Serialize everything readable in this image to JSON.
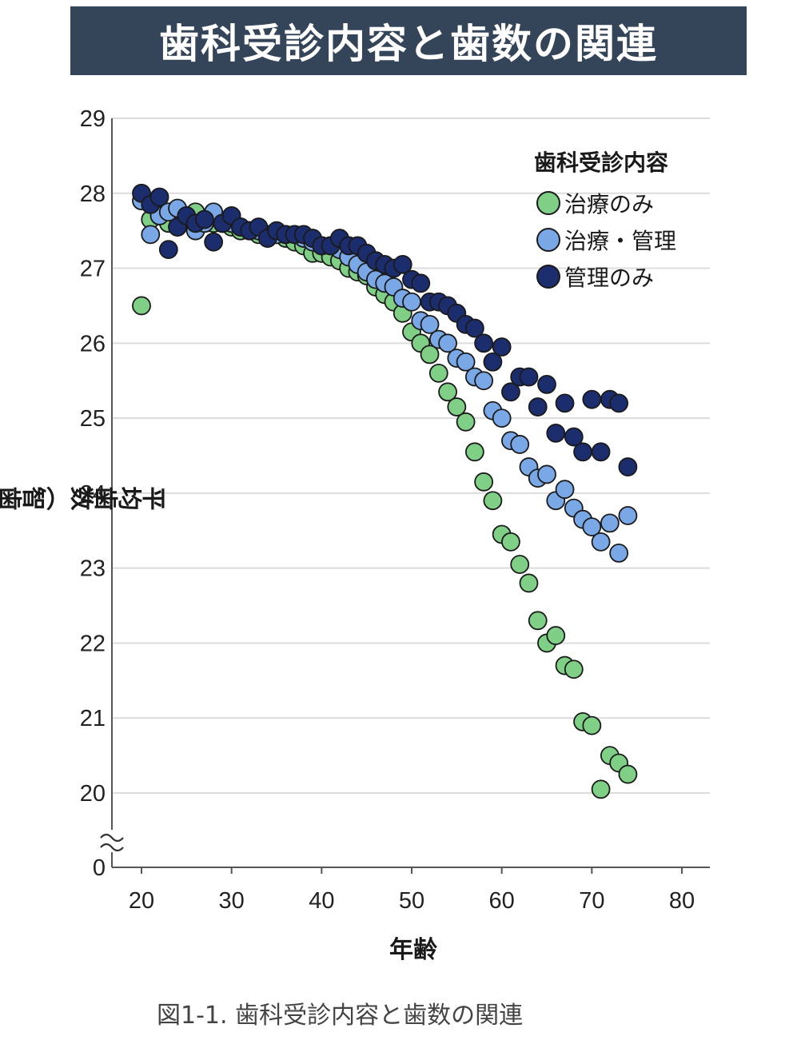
{
  "title": "歯科受診内容と歯数の関連",
  "caption": "図1-1. 歯科受診内容と歯数の関連",
  "colors": {
    "title_bg": "#354559",
    "grid": "#dcdcdc",
    "axis": "#555555"
  },
  "chart_data": {
    "type": "scatter",
    "xlabel": "年齢",
    "ylabel": "平均歯数（智歯除く）",
    "xlim": [
      17,
      83
    ],
    "ylim": [
      20,
      29
    ],
    "y_axis_break": true,
    "y_zero_label": "0",
    "xticks": [
      20,
      30,
      40,
      50,
      60,
      70,
      80
    ],
    "yticks": [
      20,
      21,
      22,
      23,
      24,
      25,
      26,
      27,
      28,
      29
    ],
    "grid": true,
    "legend": {
      "title": "歯科受診内容",
      "position": "top-right"
    },
    "series": [
      {
        "name": "治療のみ",
        "color": "#7fcf86",
        "x": [
          20,
          21,
          22,
          23,
          24,
          25,
          26,
          27,
          28,
          29,
          30,
          31,
          32,
          33,
          34,
          35,
          36,
          37,
          38,
          39,
          40,
          41,
          42,
          43,
          44,
          45,
          46,
          47,
          48,
          49,
          50,
          51,
          52,
          53,
          54,
          55,
          56,
          57,
          58,
          59,
          60,
          61,
          62,
          63,
          64,
          65,
          66,
          67,
          68,
          69,
          70,
          71,
          72,
          73,
          74
        ],
        "y": [
          26.5,
          27.65,
          27.7,
          27.6,
          27.55,
          27.7,
          27.75,
          27.65,
          27.6,
          27.6,
          27.55,
          27.5,
          27.5,
          27.45,
          27.45,
          27.45,
          27.4,
          27.35,
          27.3,
          27.2,
          27.2,
          27.15,
          27.1,
          27.0,
          26.95,
          26.9,
          26.75,
          26.65,
          26.55,
          26.4,
          26.15,
          26.0,
          25.85,
          25.6,
          25.35,
          25.15,
          24.95,
          24.55,
          24.15,
          23.9,
          23.45,
          23.35,
          23.05,
          22.8,
          22.3,
          22.0,
          22.1,
          21.7,
          21.65,
          20.95,
          20.9,
          20.05,
          20.5,
          20.4,
          20.25
        ]
      },
      {
        "name": "治療・管理",
        "color": "#7aa8e6",
        "x": [
          20,
          21,
          22,
          23,
          24,
          25,
          26,
          27,
          28,
          29,
          30,
          31,
          32,
          33,
          34,
          35,
          36,
          37,
          38,
          39,
          40,
          41,
          42,
          43,
          44,
          45,
          46,
          47,
          48,
          49,
          50,
          51,
          52,
          53,
          54,
          55,
          56,
          57,
          58,
          59,
          60,
          61,
          62,
          63,
          64,
          65,
          66,
          67,
          68,
          69,
          70,
          71,
          72,
          73,
          74
        ],
        "y": [
          27.9,
          27.45,
          27.7,
          27.75,
          27.8,
          27.65,
          27.5,
          27.6,
          27.75,
          27.6,
          27.6,
          27.55,
          27.5,
          27.5,
          27.45,
          27.45,
          27.45,
          27.45,
          27.4,
          27.35,
          27.3,
          27.3,
          27.25,
          27.15,
          27.05,
          26.95,
          26.85,
          26.8,
          26.75,
          26.6,
          26.55,
          26.3,
          26.25,
          26.05,
          26.0,
          25.8,
          25.75,
          25.55,
          25.5,
          25.1,
          25.0,
          24.7,
          24.65,
          24.35,
          24.2,
          24.25,
          23.9,
          24.05,
          23.8,
          23.65,
          23.55,
          23.35,
          23.6,
          23.2,
          23.7
        ]
      },
      {
        "name": "管理のみ",
        "color": "#1c2d6e",
        "x": [
          20,
          21,
          22,
          23,
          24,
          25,
          26,
          27,
          28,
          29,
          30,
          31,
          32,
          33,
          34,
          35,
          36,
          37,
          38,
          39,
          40,
          41,
          42,
          43,
          44,
          45,
          46,
          47,
          48,
          49,
          50,
          51,
          52,
          53,
          54,
          55,
          56,
          57,
          58,
          59,
          60,
          61,
          62,
          63,
          64,
          65,
          66,
          67,
          68,
          69,
          70,
          71,
          72,
          73,
          74
        ],
        "y": [
          28.0,
          27.85,
          27.95,
          27.25,
          27.55,
          27.7,
          27.6,
          27.65,
          27.35,
          27.6,
          27.7,
          27.55,
          27.5,
          27.55,
          27.4,
          27.5,
          27.45,
          27.45,
          27.45,
          27.4,
          27.3,
          27.3,
          27.4,
          27.3,
          27.3,
          27.2,
          27.1,
          27.05,
          27.0,
          27.05,
          26.85,
          26.8,
          26.55,
          26.55,
          26.5,
          26.4,
          26.25,
          26.2,
          26.0,
          25.75,
          25.95,
          25.35,
          25.55,
          25.55,
          25.15,
          25.45,
          24.8,
          25.2,
          24.75,
          24.55,
          25.25,
          24.55,
          25.25,
          25.2,
          24.35
        ]
      }
    ]
  }
}
